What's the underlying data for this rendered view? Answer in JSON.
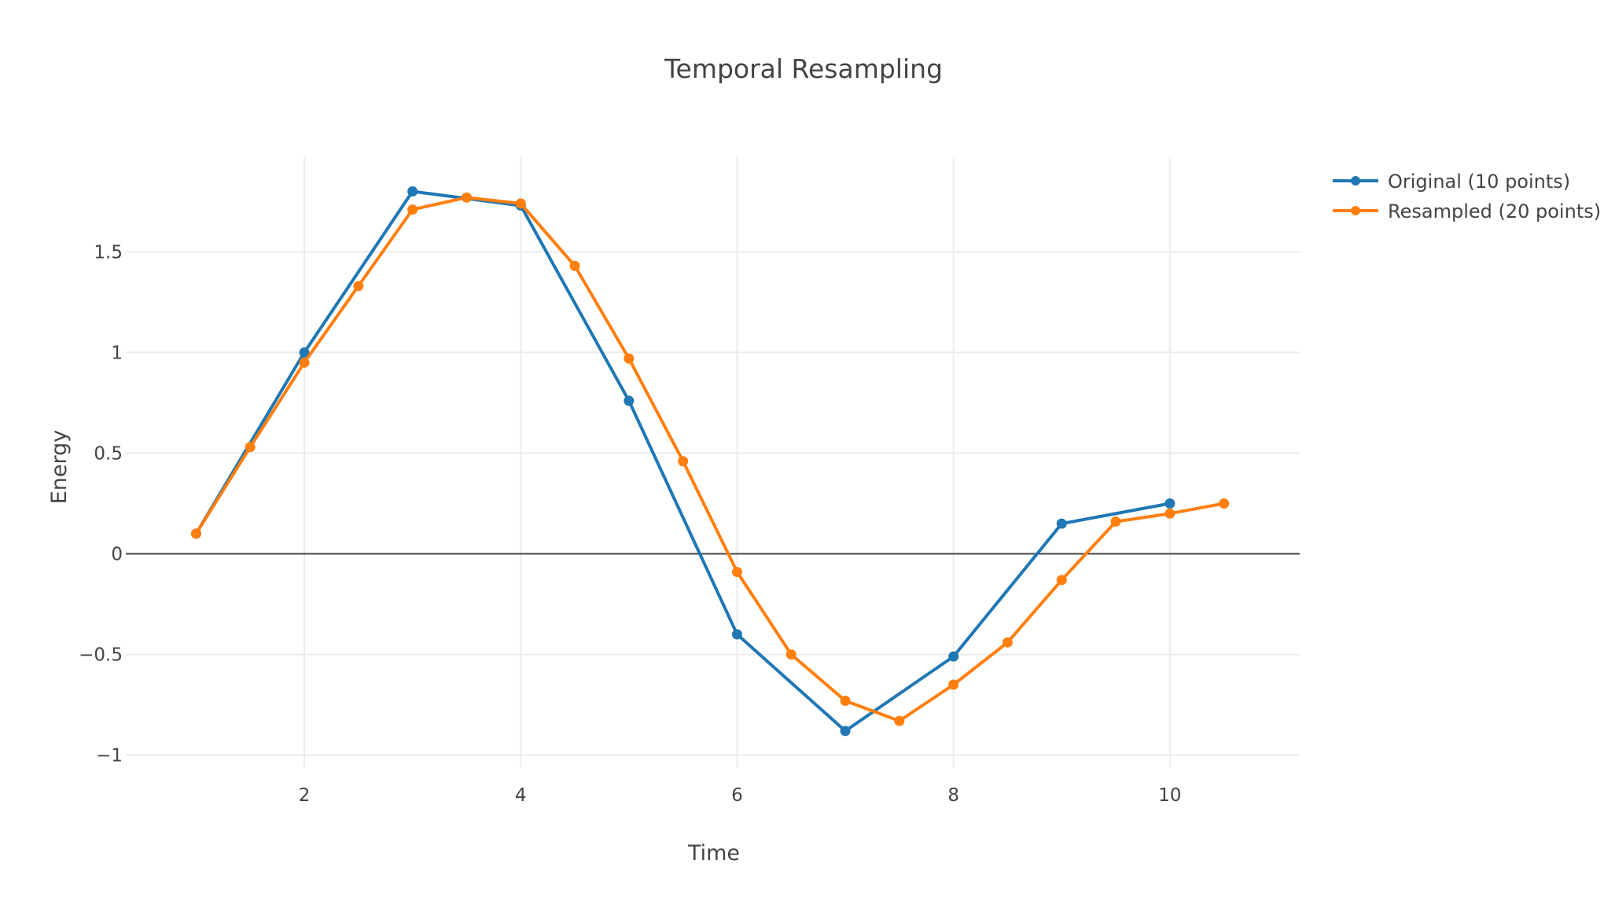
{
  "chart_data": {
    "type": "line",
    "title": "Temporal Resampling",
    "xlabel": "Time",
    "ylabel": "Energy",
    "xlim": [
      0.35,
      11.2
    ],
    "ylim": [
      -1.06,
      1.97
    ],
    "x_ticks": [
      2,
      4,
      6,
      8,
      10
    ],
    "x_tick_labels": [
      "2",
      "4",
      "6",
      "8",
      "10"
    ],
    "y_ticks": [
      -1,
      -0.5,
      0,
      0.5,
      1,
      1.5
    ],
    "y_tick_labels": [
      "−1",
      "−0.5",
      "0",
      "0.5",
      "1",
      "1.5"
    ],
    "grid": true,
    "zero_line": true,
    "legend_position": "top-right",
    "series": [
      {
        "name": "Original (10 points)",
        "color": "#1f77b4",
        "x": [
          1,
          2,
          3,
          4,
          5,
          6,
          7,
          8,
          9,
          10
        ],
        "y": [
          0.1,
          1.0,
          1.8,
          1.73,
          0.76,
          -0.4,
          -0.88,
          -0.51,
          0.15,
          0.25
        ]
      },
      {
        "name": "Resampled (20 points)",
        "color": "#ff7f0e",
        "x": [
          1,
          1.5,
          2,
          2.5,
          3,
          3.5,
          4,
          4.5,
          5,
          5.5,
          6,
          6.5,
          7,
          7.5,
          8,
          8.5,
          9,
          9.5,
          10,
          10.5
        ],
        "y": [
          0.1,
          0.53,
          0.95,
          1.33,
          1.71,
          1.77,
          1.74,
          1.43,
          0.97,
          0.46,
          -0.09,
          -0.5,
          -0.73,
          -0.83,
          -0.65,
          -0.44,
          -0.13,
          0.16,
          0.2,
          0.25
        ]
      }
    ]
  }
}
